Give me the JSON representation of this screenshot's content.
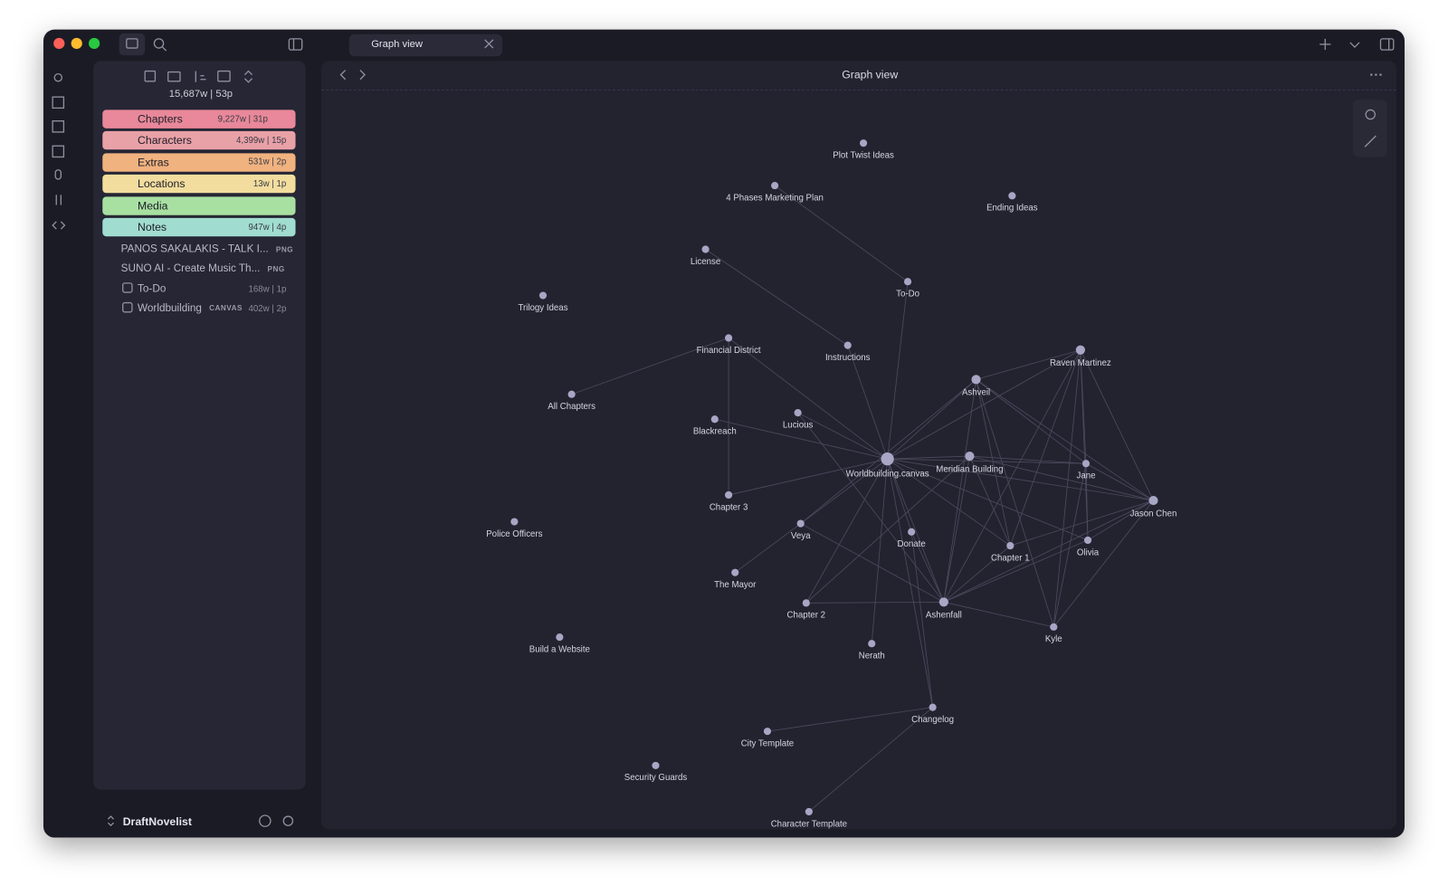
{
  "tab": {
    "title": "Graph view"
  },
  "sidebar": {
    "total": "15,687w | 53p",
    "folders": [
      {
        "name": "Chapters",
        "stats": "9,227w | 31p"
      },
      {
        "name": "Characters",
        "stats": "4,399w | 15p"
      },
      {
        "name": "Extras",
        "stats": "531w | 2p"
      },
      {
        "name": "Locations",
        "stats": "13w | 1p"
      },
      {
        "name": "Media"
      },
      {
        "name": "Notes",
        "stats": "947w | 4p"
      }
    ],
    "files": [
      {
        "name": "PANOS SAKALAKIS - TALK I...",
        "badge": "PNG"
      },
      {
        "name": "SUNO AI - Create Music Th...",
        "badge": "PNG"
      },
      {
        "name": "To-Do",
        "stats": "168w | 1p"
      },
      {
        "name": "Worldbuilding",
        "badge": "CANVAS",
        "stats": "402w | 2p"
      }
    ],
    "vault": "DraftNovelist"
  },
  "graph": {
    "title": "Graph view",
    "nodes": [
      "Plot Twist Ideas",
      "4 Phases Marketing Plan",
      "Ending Ideas",
      "License",
      "To-Do",
      "Trilogy Ideas",
      "Financial District",
      "Instructions",
      "Raven Martinez",
      "Ashveil",
      "All Chapters",
      "Lucious",
      "Blackreach",
      "Worldbuilding.canvas",
      "Meridian Building",
      "Jane",
      "Chapter 3",
      "Jason Chen",
      "Police Officers",
      "Veya",
      "Donate",
      "Chapter 1",
      "Olivia",
      "The Mayor",
      "Chapter 2",
      "Ashenfall",
      "Kyle",
      "Build a Website",
      "Nerath",
      "Changelog",
      "City Template",
      "Security Guards",
      "Character Template"
    ]
  }
}
